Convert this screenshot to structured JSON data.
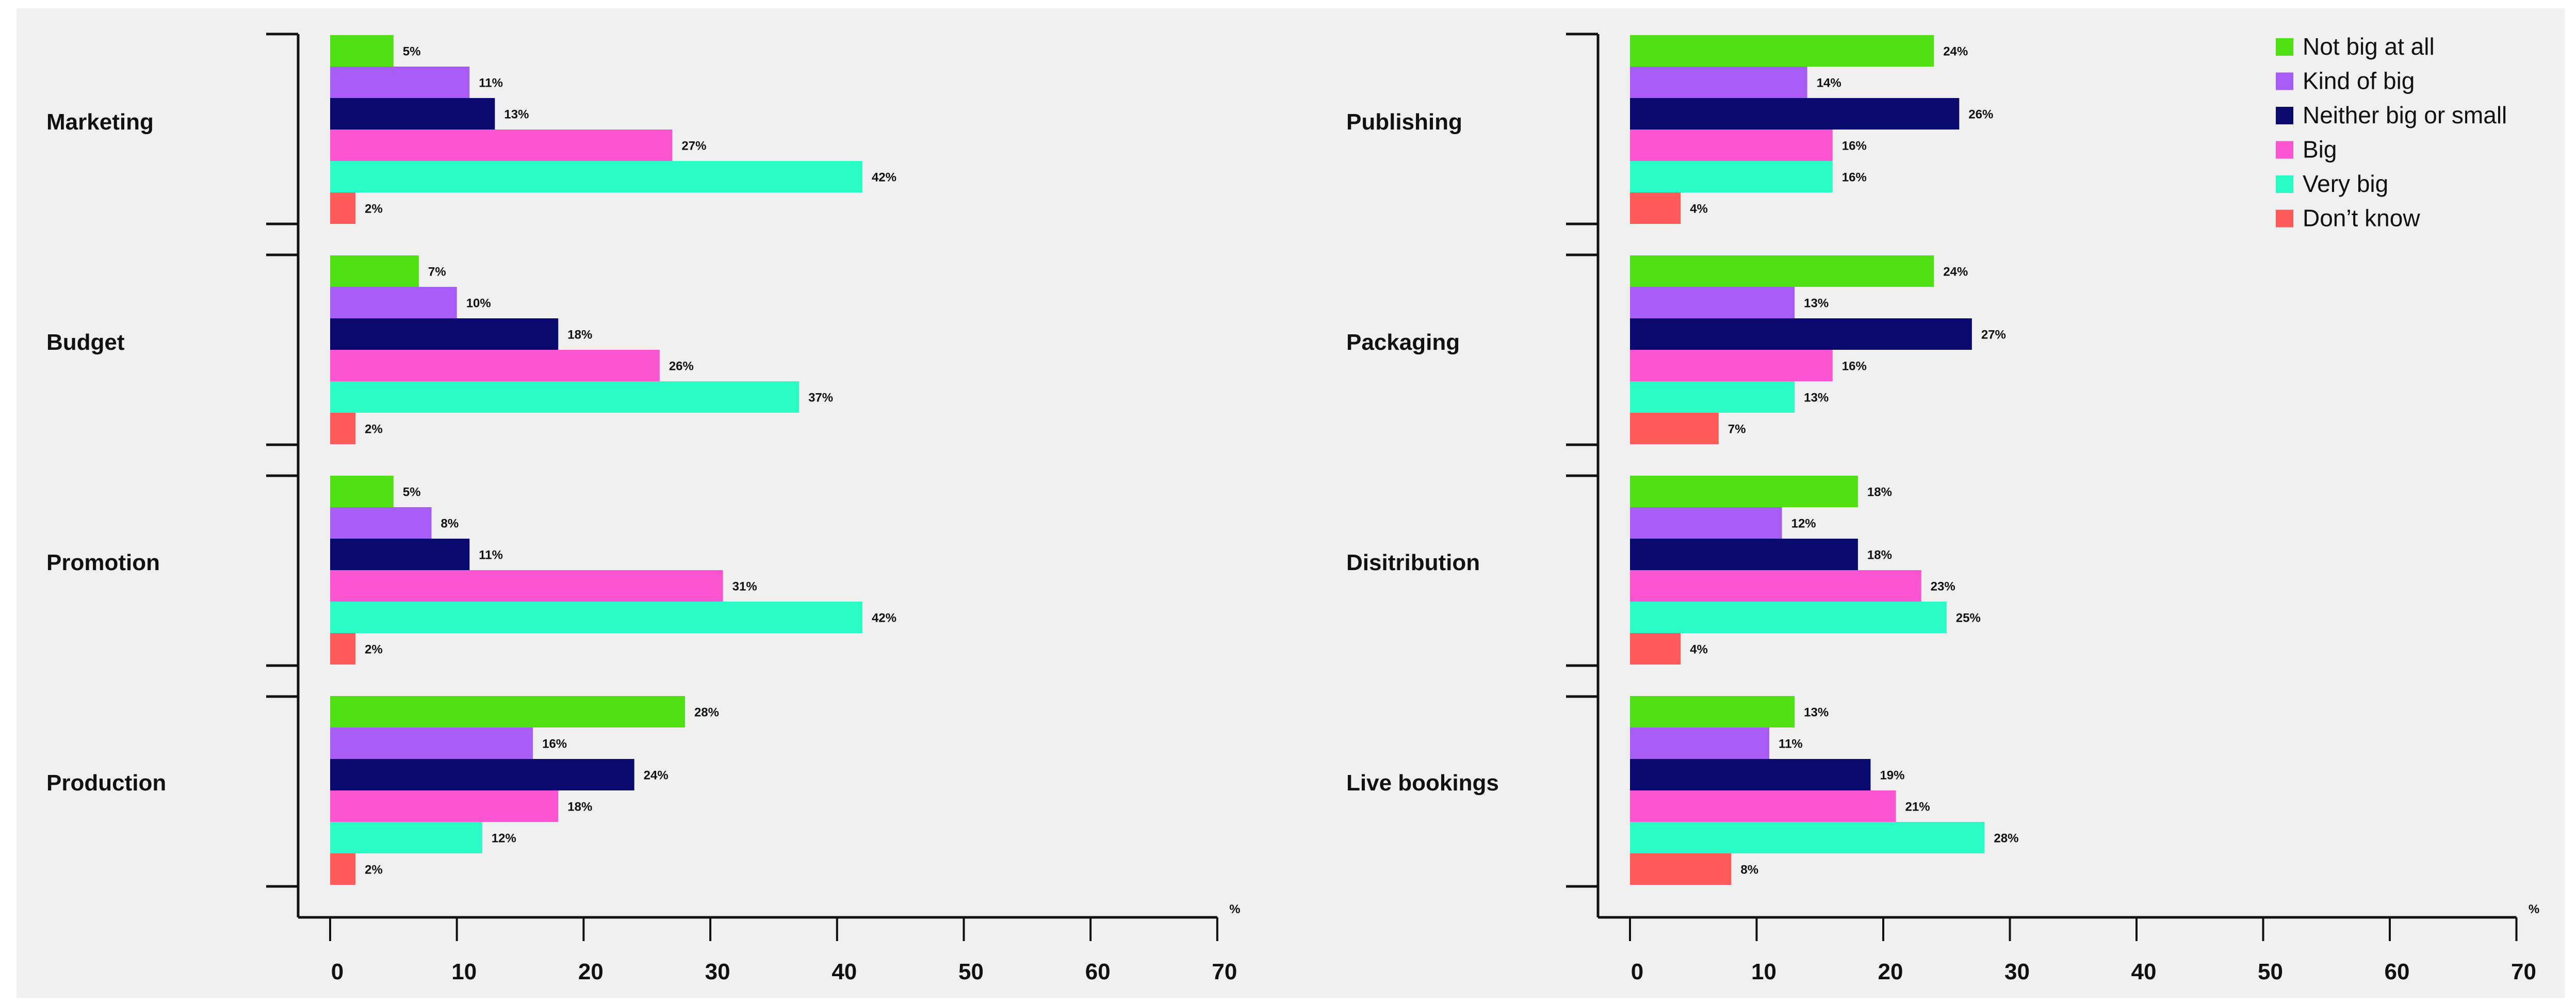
{
  "chart_data": {
    "type": "bar",
    "orientation": "horizontal",
    "xlim": [
      0,
      70
    ],
    "x_ticks": [
      0,
      10,
      20,
      30,
      40,
      50,
      60,
      70
    ],
    "x_unit": "%",
    "legend": {
      "placement": "top-right",
      "entries": [
        {
          "name": "Not big at all",
          "color": "#50e114"
        },
        {
          "name": "Kind of big",
          "color": "#a65cf5"
        },
        {
          "name": "Neither big or small",
          "color": "#0a0a6e"
        },
        {
          "name": "Big",
          "color": "#fc55d1"
        },
        {
          "name": "Very big",
          "color": "#2afcc5"
        },
        {
          "name": "Don’t know",
          "color": "#ff5a5a"
        }
      ]
    },
    "panels": [
      {
        "categories": [
          "Marketing",
          "Budget",
          "Promotion",
          "Production"
        ],
        "series": [
          {
            "name": "Not big at all",
            "values": [
              5,
              7,
              5,
              28
            ]
          },
          {
            "name": "Kind of big",
            "values": [
              11,
              10,
              8,
              16
            ]
          },
          {
            "name": "Neither big or small",
            "values": [
              13,
              18,
              11,
              24
            ]
          },
          {
            "name": "Big",
            "values": [
              27,
              26,
              31,
              18
            ]
          },
          {
            "name": "Very big",
            "values": [
              42,
              37,
              42,
              12
            ]
          },
          {
            "name": "Don’t know",
            "values": [
              2,
              2,
              2,
              2
            ]
          }
        ]
      },
      {
        "categories": [
          "Publishing",
          "Packaging",
          "Disitribution",
          "Live bookings"
        ],
        "series": [
          {
            "name": "Not big at all",
            "values": [
              24,
              24,
              18,
              13
            ]
          },
          {
            "name": "Kind of big",
            "values": [
              14,
              13,
              12,
              11
            ]
          },
          {
            "name": "Neither big or small",
            "values": [
              26,
              27,
              18,
              19
            ]
          },
          {
            "name": "Big",
            "values": [
              16,
              16,
              23,
              21
            ]
          },
          {
            "name": "Very big",
            "values": [
              16,
              13,
              25,
              28
            ]
          },
          {
            "name": "Don’t know",
            "values": [
              4,
              7,
              4,
              8
            ]
          }
        ]
      }
    ]
  }
}
